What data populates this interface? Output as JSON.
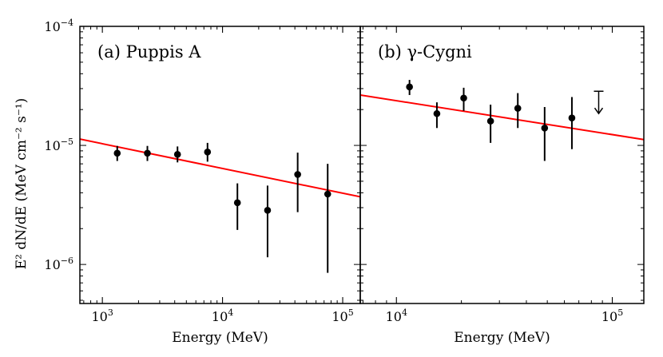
{
  "ylabel": "E² dN/dE (MeV cm⁻² s⁻¹)",
  "chart_data": [
    {
      "type": "scatter",
      "title": "(a) Puppis A",
      "xlabel": "Energy (MeV)",
      "xscale": "log",
      "yscale": "log",
      "xlim": [
        650,
        140000
      ],
      "ylim": [
        4.7e-07,
        0.0001
      ],
      "xticks": [
        {
          "value": 1000,
          "base": "10",
          "exp": "3"
        },
        {
          "value": 10000,
          "base": "10",
          "exp": "4"
        },
        {
          "value": 100000,
          "base": "10",
          "exp": "5"
        }
      ],
      "yticks": [
        {
          "value": 1e-06,
          "base": "10",
          "exp": "−6"
        },
        {
          "value": 1e-05,
          "base": "10",
          "exp": "−5"
        },
        {
          "value": 0.0001,
          "base": "10",
          "exp": "−4"
        }
      ],
      "points": [
        {
          "x": 1330,
          "y": 8.6e-06,
          "ylo": 7.4e-06,
          "yhi": 9.9e-06
        },
        {
          "x": 2370,
          "y": 8.6e-06,
          "ylo": 7.4e-06,
          "yhi": 9.9e-06
        },
        {
          "x": 4220,
          "y": 8.4e-06,
          "ylo": 7.2e-06,
          "yhi": 9.8e-06
        },
        {
          "x": 7500,
          "y": 8.8e-06,
          "ylo": 7.3e-06,
          "yhi": 1.05e-05
        },
        {
          "x": 13300,
          "y": 3.3e-06,
          "ylo": 1.95e-06,
          "yhi": 4.8e-06
        },
        {
          "x": 23700,
          "y": 2.85e-06,
          "ylo": 1.15e-06,
          "yhi": 4.6e-06
        },
        {
          "x": 42200,
          "y": 5.7e-06,
          "ylo": 2.75e-06,
          "yhi": 8.7e-06
        },
        {
          "x": 75000,
          "y": 3.9e-06,
          "ylo": 8.5e-07,
          "yhi": 7e-06
        }
      ],
      "model_line": {
        "color": "#ff0000",
        "x": [
          650,
          140000
        ],
        "y": [
          1.13e-05,
          3.7e-06
        ]
      }
    },
    {
      "type": "scatter",
      "title": "(b) γ-Cygni",
      "xlabel": "Energy (MeV)",
      "xscale": "log",
      "yscale": "log",
      "xlim": [
        6800,
        140000
      ],
      "ylim": [
        4.7e-07,
        0.0001
      ],
      "xticks": [
        {
          "value": 10000,
          "base": "10",
          "exp": "4"
        },
        {
          "value": 100000,
          "base": "10",
          "exp": "5"
        }
      ],
      "points": [
        {
          "x": 11500,
          "y": 3.1e-05,
          "ylo": 2.65e-05,
          "yhi": 3.55e-05
        },
        {
          "x": 15400,
          "y": 1.85e-05,
          "ylo": 1.4e-05,
          "yhi": 2.3e-05
        },
        {
          "x": 20500,
          "y": 2.5e-05,
          "ylo": 1.95e-05,
          "yhi": 3.05e-05
        },
        {
          "x": 27300,
          "y": 1.6e-05,
          "ylo": 1.05e-05,
          "yhi": 2.2e-05
        },
        {
          "x": 36500,
          "y": 2.05e-05,
          "ylo": 1.4e-05,
          "yhi": 2.75e-05
        },
        {
          "x": 48600,
          "y": 1.4e-05,
          "ylo": 7.4e-06,
          "yhi": 2.1e-05
        },
        {
          "x": 65000,
          "y": 1.7e-05,
          "ylo": 9.3e-06,
          "yhi": 2.55e-05
        }
      ],
      "upper_limits": [
        {
          "x": 86500,
          "y": 2.85e-05,
          "arrow_to": 1.85e-05
        }
      ],
      "model_line": {
        "color": "#ff0000",
        "x": [
          6800,
          140000
        ],
        "y": [
          2.65e-05,
          1.12e-05
        ]
      }
    }
  ]
}
